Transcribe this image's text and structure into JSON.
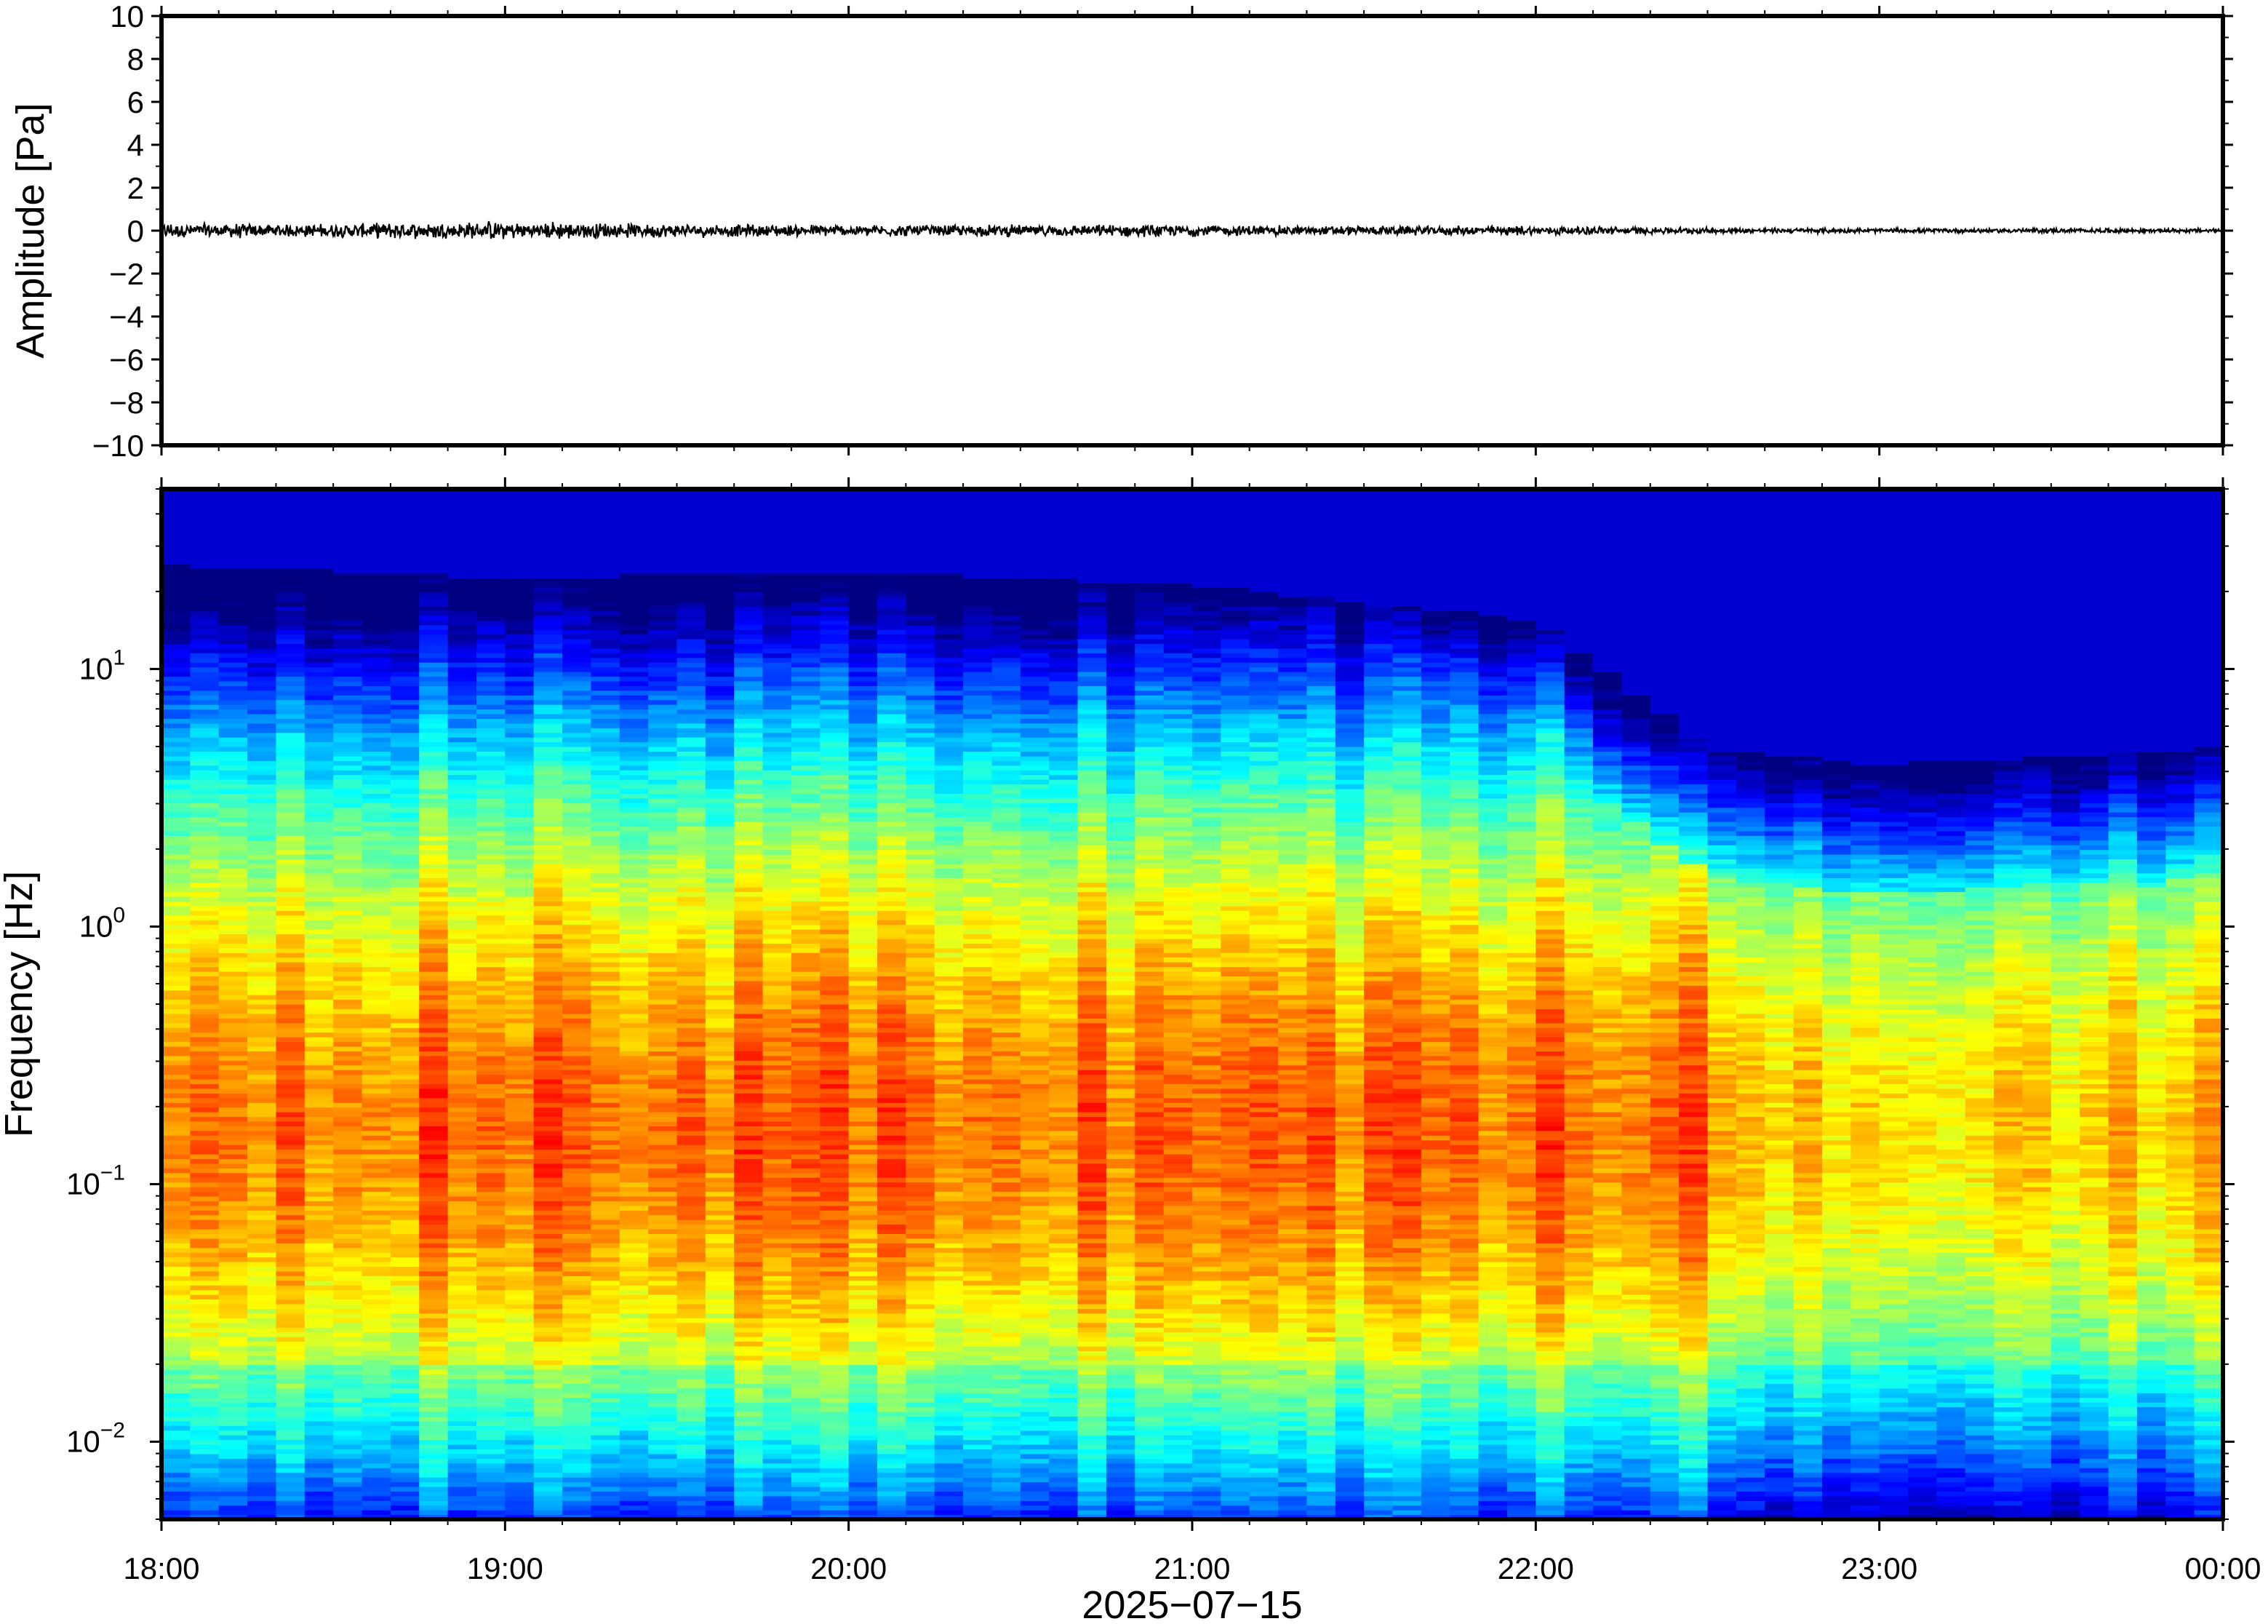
{
  "chart_data": [
    {
      "type": "line",
      "ylabel": "Amplitude [Pa]",
      "ylim": [
        -10,
        10
      ],
      "yticks": [
        {
          "value": 10,
          "label": "10"
        },
        {
          "value": 8,
          "label": "8"
        },
        {
          "value": 6,
          "label": "6"
        },
        {
          "value": 4,
          "label": "4"
        },
        {
          "value": 2,
          "label": "2"
        },
        {
          "value": 0,
          "label": "0"
        },
        {
          "value": -2,
          "label": "−2"
        },
        {
          "value": -4,
          "label": "−4"
        },
        {
          "value": -6,
          "label": "−6"
        },
        {
          "value": -8,
          "label": "−8"
        },
        {
          "value": -10,
          "label": "−10"
        }
      ],
      "xlim": [
        "2025-07-15 18:00",
        "2025-07-16 00:00"
      ],
      "trace_envelope": {
        "x": [
          "18:00",
          "18:30",
          "19:00",
          "19:30",
          "20:00",
          "20:30",
          "21:00",
          "21:30",
          "22:00",
          "22:30",
          "23:00",
          "23:30",
          "00:00"
        ],
        "peak_abs_pa": [
          0.4,
          0.35,
          0.5,
          0.35,
          0.3,
          0.3,
          0.3,
          0.25,
          0.25,
          0.15,
          0.12,
          0.12,
          0.12
        ]
      },
      "color": "#000000"
    },
    {
      "type": "heatmap",
      "ylabel": "Frequency [Hz]",
      "yscale": "log",
      "ylim": [
        0.005,
        50
      ],
      "yticks": [
        {
          "value": 10,
          "base": "10",
          "exp": "1"
        },
        {
          "value": 1,
          "base": "10",
          "exp": "0"
        },
        {
          "value": 0.1,
          "base": "10",
          "exp": "−1"
        },
        {
          "value": 0.01,
          "base": "10",
          "exp": "−2"
        }
      ],
      "xlabel": "2025−07−15",
      "xlim": [
        "2025-07-15 18:00",
        "2025-07-16 00:00"
      ],
      "xticks": [
        "18:00",
        "19:00",
        "20:00",
        "21:00",
        "22:00",
        "23:00",
        "00:00"
      ],
      "colormap": "jet",
      "colormap_range": "dark navy (low power) to orange (high power)",
      "energy_upper_limit_hz": {
        "x": [
          "18:00",
          "19:00",
          "20:00",
          "21:00",
          "22:00",
          "22:30",
          "23:00",
          "00:00"
        ],
        "values": [
          18,
          16,
          17,
          15,
          11,
          3.5,
          3,
          3.5
        ]
      },
      "peak_band_hz": [
        0.05,
        0.25
      ],
      "peak_band_center_hz": 0.19
    }
  ]
}
